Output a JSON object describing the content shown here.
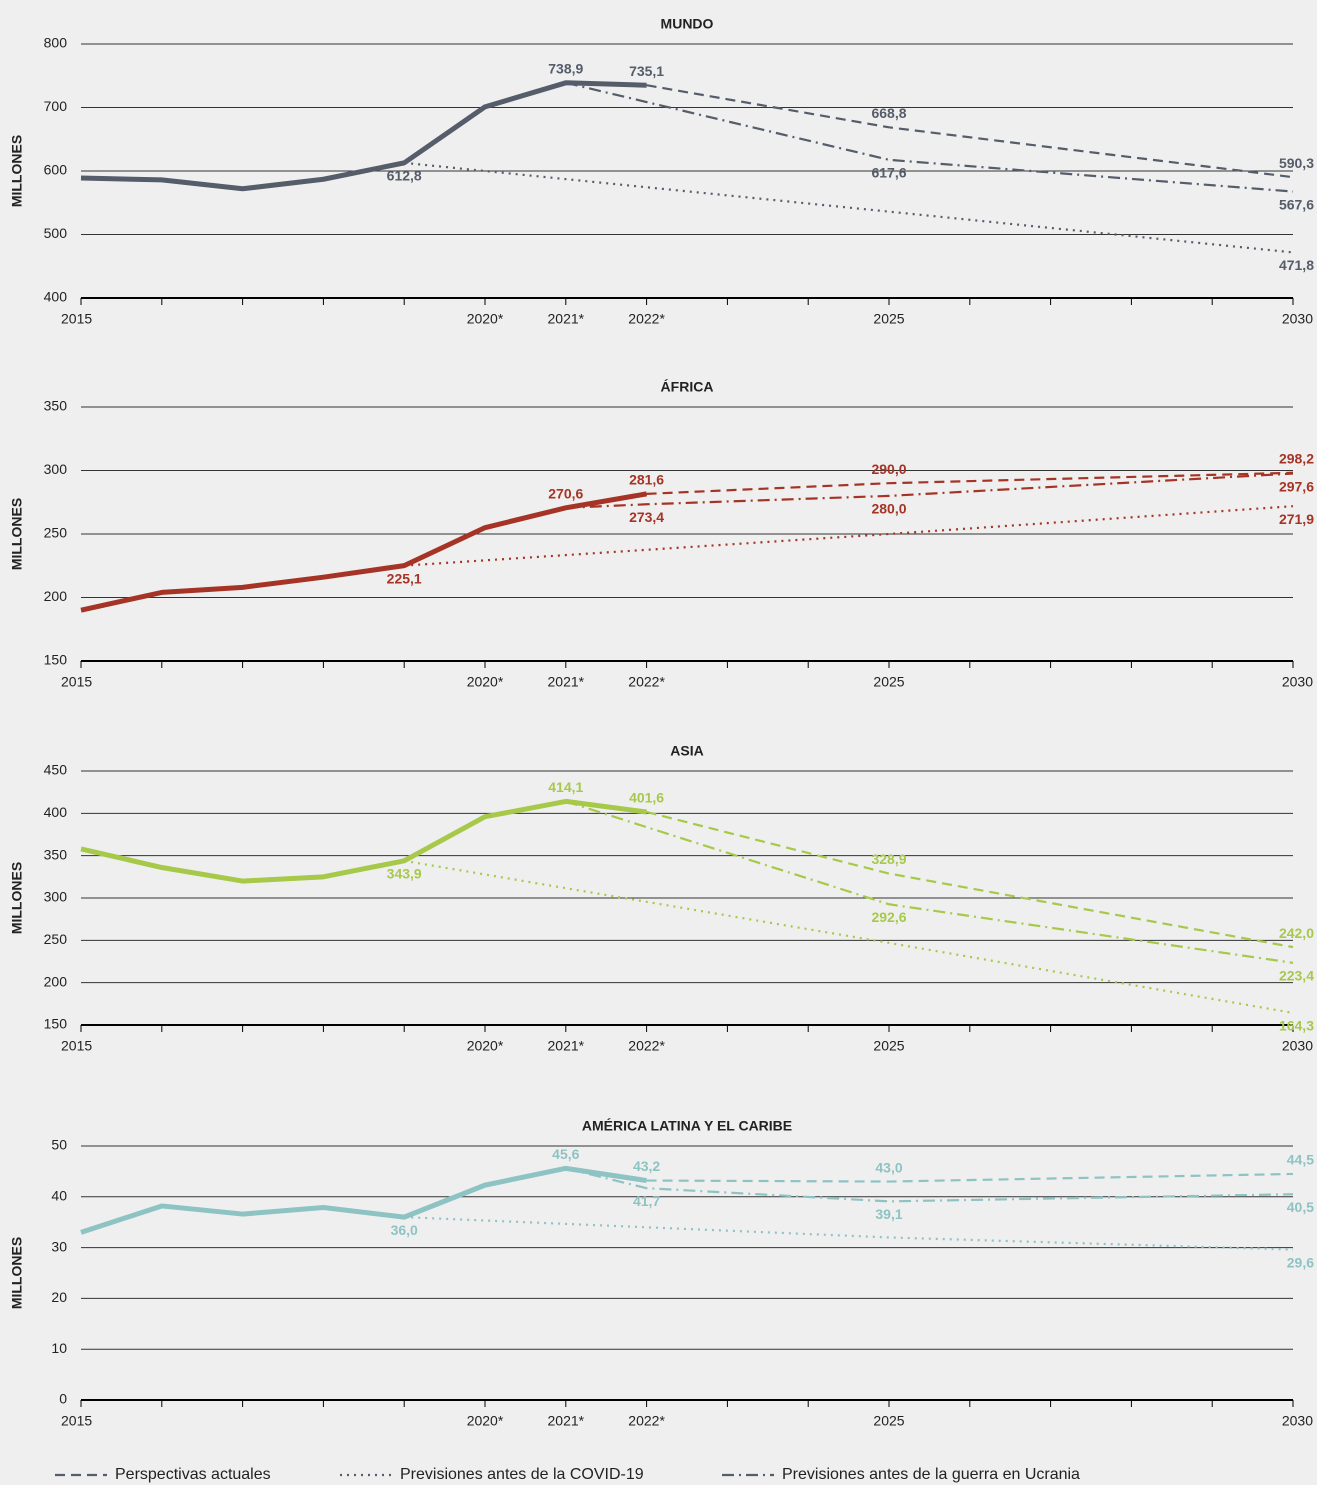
{
  "chart_data": [
    {
      "type": "line",
      "title": "MUNDO",
      "ylabel": "MILLONES",
      "color": "#555c6a",
      "grid": true,
      "xlim": [
        2015,
        2030
      ],
      "xticks": [
        2015,
        {
          "value": 2020,
          "label": "2020*"
        },
        {
          "value": 2021,
          "label": "2021*"
        },
        {
          "value": 2022,
          "label": "2022*"
        },
        2025,
        2030
      ],
      "xminor": [
        2016,
        2017,
        2018,
        2019,
        2023,
        2024,
        2026,
        2027,
        2028,
        2029
      ],
      "ylim": [
        400,
        800
      ],
      "yticks": [
        400,
        500,
        600,
        700,
        800
      ],
      "series": [
        {
          "style": "solid",
          "x": [
            2015,
            2016,
            2017,
            2018,
            2019,
            2020,
            2021,
            2022
          ],
          "values": [
            589,
            586,
            572,
            587,
            612.8,
            701,
            738.9,
            735.1
          ],
          "value_labels": [
            null,
            null,
            null,
            null,
            "612,8",
            null,
            "738,9",
            "735,1"
          ]
        },
        {
          "style": "dashed",
          "x": [
            2022,
            2025,
            2030
          ],
          "values": [
            735.1,
            668.8,
            590.3
          ],
          "value_labels": [
            null,
            "668,8",
            "590,3"
          ]
        },
        {
          "style": "dotted",
          "x": [
            2019,
            2020,
            2025,
            2030
          ],
          "values": [
            612.8,
            600,
            536,
            471.8
          ],
          "value_labels": [
            null,
            null,
            null,
            "471,8"
          ]
        },
        {
          "style": "dashdot",
          "x": [
            2021,
            2025,
            2030
          ],
          "values": [
            738.9,
            617.6,
            567.6
          ],
          "value_labels": [
            null,
            "617,6",
            "567,6"
          ]
        }
      ]
    },
    {
      "type": "line",
      "title": "ÁFRICA",
      "ylabel": "MILLONES",
      "color": "#a53426",
      "grid": true,
      "xlim": [
        2015,
        2030
      ],
      "xticks": [
        2015,
        {
          "value": 2020,
          "label": "2020*"
        },
        {
          "value": 2021,
          "label": "2021*"
        },
        {
          "value": 2022,
          "label": "2022*"
        },
        2025,
        2030
      ],
      "xminor": [
        2016,
        2017,
        2018,
        2019,
        2023,
        2024,
        2026,
        2027,
        2028,
        2029
      ],
      "ylim": [
        150,
        350
      ],
      "yticks": [
        150,
        200,
        250,
        300,
        350
      ],
      "series": [
        {
          "style": "solid",
          "x": [
            2015,
            2016,
            2017,
            2018,
            2019,
            2020,
            2021,
            2022
          ],
          "values": [
            190,
            204,
            208,
            216,
            225.1,
            255,
            270.6,
            281.6
          ],
          "value_labels": [
            null,
            null,
            null,
            null,
            "225,1",
            null,
            "270,6",
            "281,6"
          ]
        },
        {
          "style": "dashed",
          "x": [
            2022,
            2025,
            2030
          ],
          "values": [
            281.6,
            290.0,
            298.2
          ],
          "value_labels": [
            null,
            "290,0",
            "298,2"
          ]
        },
        {
          "style": "dotted",
          "x": [
            2019,
            2025,
            2030
          ],
          "values": [
            225.1,
            250,
            271.9
          ],
          "value_labels": [
            null,
            null,
            "271,9"
          ]
        },
        {
          "style": "dashdot",
          "x": [
            2021,
            2022,
            2025,
            2030
          ],
          "values": [
            270.6,
            273.4,
            280.0,
            297.6
          ],
          "value_labels": [
            null,
            "273,4",
            "280,0",
            "297,6"
          ]
        }
      ]
    },
    {
      "type": "line",
      "title": "ASIA",
      "ylabel": "MILLONES",
      "color": "#a6c94a",
      "grid": true,
      "xlim": [
        2015,
        2030
      ],
      "xticks": [
        2015,
        {
          "value": 2020,
          "label": "2020*"
        },
        {
          "value": 2021,
          "label": "2021*"
        },
        {
          "value": 2022,
          "label": "2022*"
        },
        2025,
        2030
      ],
      "xminor": [
        2016,
        2017,
        2018,
        2019,
        2023,
        2024,
        2026,
        2027,
        2028,
        2029
      ],
      "ylim": [
        150,
        450
      ],
      "yticks": [
        150,
        200,
        250,
        300,
        350,
        400,
        450
      ],
      "series": [
        {
          "style": "solid",
          "x": [
            2015,
            2016,
            2017,
            2018,
            2019,
            2020,
            2021,
            2022
          ],
          "values": [
            358,
            336,
            320,
            325,
            343.9,
            396,
            414.1,
            401.6
          ],
          "value_labels": [
            null,
            null,
            null,
            null,
            "343,9",
            null,
            "414,1",
            "401,6"
          ]
        },
        {
          "style": "dashed",
          "x": [
            2022,
            2025,
            2030
          ],
          "values": [
            401.6,
            328.9,
            242.0
          ],
          "value_labels": [
            null,
            "328,9",
            "242,0"
          ]
        },
        {
          "style": "dotted",
          "x": [
            2019,
            2025,
            2030
          ],
          "values": [
            343.9,
            247,
            164.3
          ],
          "value_labels": [
            null,
            null,
            "164,3"
          ]
        },
        {
          "style": "dashdot",
          "x": [
            2021,
            2025,
            2030
          ],
          "values": [
            414.1,
            292.6,
            223.4
          ],
          "value_labels": [
            null,
            "292,6",
            "223,4"
          ]
        }
      ]
    },
    {
      "type": "line",
      "title": "AMÉRICA LATINA Y EL CARIBE",
      "ylabel": "MILLONES",
      "color": "#8ec3c4",
      "grid": true,
      "xlim": [
        2015,
        2030
      ],
      "xticks": [
        2015,
        {
          "value": 2020,
          "label": "2020*"
        },
        {
          "value": 2021,
          "label": "2021*"
        },
        {
          "value": 2022,
          "label": "2022*"
        },
        2025,
        2030
      ],
      "xminor": [
        2016,
        2017,
        2018,
        2019,
        2023,
        2024,
        2026,
        2027,
        2028,
        2029
      ],
      "ylim": [
        0,
        50
      ],
      "yticks": [
        0,
        10,
        20,
        30,
        40,
        50
      ],
      "series": [
        {
          "style": "solid",
          "x": [
            2015,
            2016,
            2017,
            2018,
            2019,
            2020,
            2021,
            2022
          ],
          "values": [
            33,
            38.2,
            36.6,
            37.9,
            36.0,
            42.3,
            45.6,
            43.2
          ],
          "value_labels": [
            null,
            null,
            null,
            null,
            "36,0",
            null,
            "45,6",
            "43,2"
          ]
        },
        {
          "style": "dashed",
          "x": [
            2022,
            2025,
            2030
          ],
          "values": [
            43.2,
            43.0,
            44.5
          ],
          "value_labels": [
            null,
            "43,0",
            "44,5"
          ]
        },
        {
          "style": "dotted",
          "x": [
            2019,
            2025,
            2030
          ],
          "values": [
            36.0,
            32,
            29.6
          ],
          "value_labels": [
            null,
            null,
            "29,6"
          ]
        },
        {
          "style": "dashdot",
          "x": [
            2021,
            2022,
            2025,
            2030
          ],
          "values": [
            45.6,
            41.7,
            39.1,
            40.5
          ],
          "value_labels": [
            null,
            "41,7",
            "39,1",
            "40,5"
          ]
        }
      ]
    }
  ],
  "legend_color": "#555c6a",
  "legend": [
    {
      "name": "Perspectivas actuales",
      "style": "dashed"
    },
    {
      "name": "Previsiones antes de la COVID-19",
      "style": "dotted"
    },
    {
      "name": "Previsiones antes de la guerra en Ucrania",
      "style": "dashdot"
    }
  ]
}
